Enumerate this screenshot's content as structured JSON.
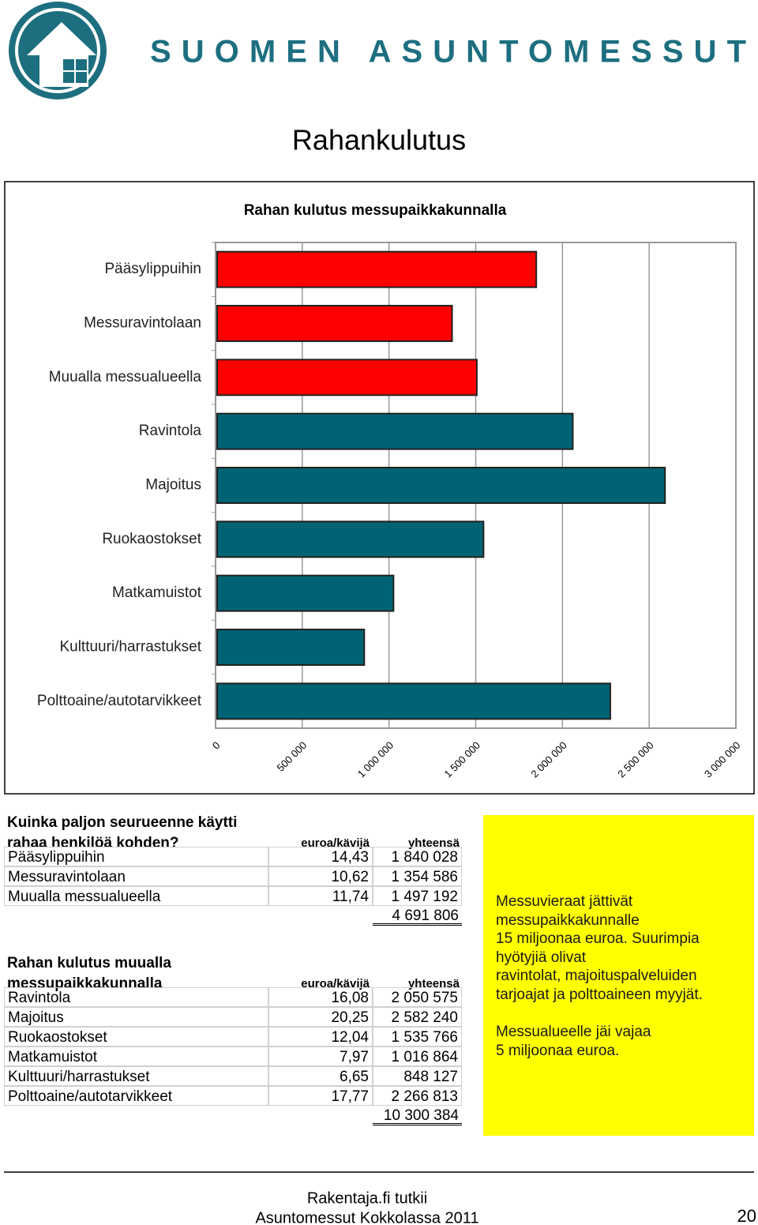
{
  "header": {
    "brand": "SUOMEN ASUNTOMESSUT",
    "title": "Rahankulutus"
  },
  "chart_data": {
    "type": "bar",
    "orientation": "horizontal",
    "title": "Rahan kulutus messupaikkakunnalla",
    "categories": [
      "Pääsylippuihin",
      "Messuravintolaan",
      "Muualla messualueella",
      "Ravintola",
      "Majoitus",
      "Ruokaostokset",
      "Matkamuistot",
      "Kulttuuri/harrastukset",
      "Polttoaine/autotarvikkeet"
    ],
    "values": [
      1840028,
      1354586,
      1497192,
      2050575,
      2582240,
      1535766,
      1016864,
      848127,
      2266813
    ],
    "colors": [
      "#ff0000",
      "#ff0000",
      "#ff0000",
      "#006373",
      "#006373",
      "#006373",
      "#006373",
      "#006373",
      "#006373"
    ],
    "xlim": [
      0,
      3000000
    ],
    "xticks": [
      0,
      {
        "value": 500000,
        "label": "500 000"
      },
      {
        "value": 1000000,
        "label": "1 000 000"
      },
      {
        "value": 1500000,
        "label": "1 500 000"
      },
      {
        "value": 2000000,
        "label": "2 000 000"
      },
      {
        "value": 2500000,
        "label": "2 500 000"
      },
      {
        "value": 3000000,
        "label": "3 000 000"
      }
    ],
    "grid": true
  },
  "table1": {
    "title": "Kuinka paljon seurueenne käytti rahaa henkilöä kohden?",
    "columns": [
      "euroa/kävijä",
      "yhteensä"
    ],
    "rows": [
      [
        "Pääsylippuihin",
        "14,43",
        "1 840 028"
      ],
      [
        "Messuravintolaan",
        "10,62",
        "1 354 586"
      ],
      [
        "Muualla messualueella",
        "11,74",
        "1 497 192"
      ]
    ],
    "total": "4 691 806"
  },
  "table2": {
    "title": "Rahan kulutus muualla messupaikkakunnalla",
    "columns": [
      "euroa/kävijä",
      "yhteensä"
    ],
    "rows": [
      [
        "Ravintola",
        "16,08",
        "2 050 575"
      ],
      [
        "Majoitus",
        "20,25",
        "2 582 240"
      ],
      [
        "Ruokaostokset",
        "12,04",
        "1 535 766"
      ],
      [
        "Matkamuistot",
        "7,97",
        "1 016 864"
      ],
      [
        "Kulttuuri/harrastukset",
        "6,65",
        "848 127"
      ],
      [
        "Polttoaine/autotarvikkeet",
        "17,77",
        "2 266 813"
      ]
    ],
    "total": "10 300 384"
  },
  "note": {
    "paragraphs": [
      [
        "Messuvieraat jättivät",
        "messupaikkakunnalle",
        "15 miljoonaa euroa. Suurimpia",
        "hyötyjiä olivat",
        "ravintolat, majoituspalveluiden",
        "tarjoajat ja polttoaineen myyjät."
      ],
      [
        "Messualueelle jäi vajaa",
        "5 miljoonaa euroa."
      ]
    ]
  },
  "footer": {
    "lines": [
      "Rakentaja.fi tutkii",
      "Asuntomessut Kokkolassa 2011"
    ],
    "page": "20"
  }
}
